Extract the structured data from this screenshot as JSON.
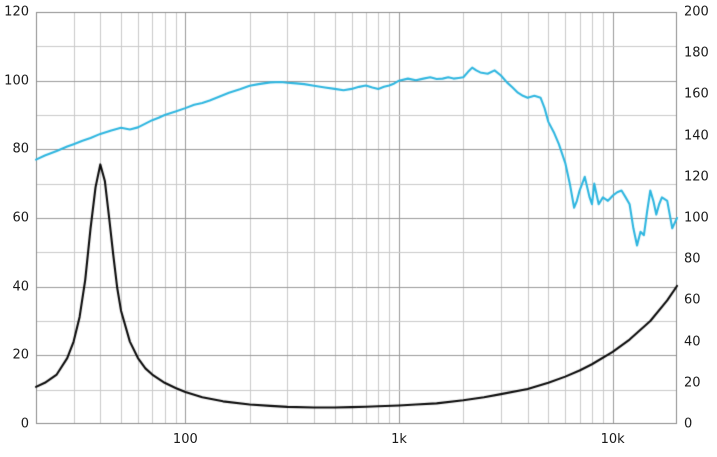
{
  "chart_data": {
    "type": "line",
    "title": "",
    "xlabel": "",
    "ylabel_left": "",
    "ylabel_right": "",
    "x_axis": {
      "scale": "log",
      "min": 20,
      "max": 20000,
      "tick_labels": [
        {
          "value": 100,
          "label": "100"
        },
        {
          "value": 1000,
          "label": "1k"
        },
        {
          "value": 10000,
          "label": "10k"
        }
      ]
    },
    "y_axis_left": {
      "min": 0,
      "max": 120,
      "grid_step": 10,
      "ticks": [
        0,
        20,
        40,
        60,
        80,
        100,
        120
      ]
    },
    "y_axis_right": {
      "min": 0,
      "max": 200,
      "ticks": [
        0,
        20,
        40,
        60,
        80,
        100,
        120,
        140,
        160,
        180,
        200
      ]
    },
    "grid": true,
    "legend": "none",
    "colors": {
      "background": "#ffffff",
      "grid_minor": "#c9c9c9",
      "grid_major": "#999999",
      "border": "#8a8a8a",
      "text": "#1a1a1a",
      "spl_curve": "#2eb6e0",
      "impedance_curve": "#0a0a0a"
    },
    "series": [
      {
        "name": "spl-response",
        "axis": "left",
        "color": "#2eb6e0",
        "points": [
          [
            20,
            77
          ],
          [
            22,
            78.2
          ],
          [
            25,
            79.5
          ],
          [
            28,
            80.8
          ],
          [
            30,
            81.5
          ],
          [
            33,
            82.5
          ],
          [
            36,
            83.3
          ],
          [
            40,
            84.5
          ],
          [
            45,
            85.5
          ],
          [
            50,
            86.3
          ],
          [
            55,
            85.8
          ],
          [
            60,
            86.4
          ],
          [
            65,
            87.5
          ],
          [
            70,
            88.5
          ],
          [
            75,
            89.2
          ],
          [
            80,
            90
          ],
          [
            90,
            91
          ],
          [
            100,
            92
          ],
          [
            110,
            93
          ],
          [
            120,
            93.5
          ],
          [
            130,
            94.2
          ],
          [
            140,
            95
          ],
          [
            160,
            96.5
          ],
          [
            180,
            97.5
          ],
          [
            200,
            98.5
          ],
          [
            220,
            99
          ],
          [
            250,
            99.5
          ],
          [
            280,
            99.6
          ],
          [
            300,
            99.4
          ],
          [
            330,
            99.2
          ],
          [
            360,
            99
          ],
          [
            400,
            98.5
          ],
          [
            450,
            98
          ],
          [
            500,
            97.6
          ],
          [
            550,
            97.2
          ],
          [
            600,
            97.6
          ],
          [
            650,
            98.2
          ],
          [
            700,
            98.6
          ],
          [
            750,
            98
          ],
          [
            800,
            97.6
          ],
          [
            850,
            98.2
          ],
          [
            900,
            98.6
          ],
          [
            950,
            99.2
          ],
          [
            1000,
            100
          ],
          [
            1100,
            100.6
          ],
          [
            1200,
            100.1
          ],
          [
            1300,
            100.6
          ],
          [
            1400,
            101
          ],
          [
            1500,
            100.5
          ],
          [
            1600,
            100.6
          ],
          [
            1700,
            101
          ],
          [
            1800,
            100.6
          ],
          [
            1900,
            100.8
          ],
          [
            2000,
            101
          ],
          [
            2100,
            102.5
          ],
          [
            2200,
            103.8
          ],
          [
            2300,
            103
          ],
          [
            2400,
            102.4
          ],
          [
            2600,
            102
          ],
          [
            2800,
            103
          ],
          [
            3000,
            101.5
          ],
          [
            3200,
            99.5
          ],
          [
            3400,
            98
          ],
          [
            3600,
            96.5
          ],
          [
            3800,
            95.6
          ],
          [
            4000,
            95
          ],
          [
            4300,
            95.6
          ],
          [
            4600,
            95
          ],
          [
            4800,
            92
          ],
          [
            5000,
            88
          ],
          [
            5300,
            85
          ],
          [
            5600,
            81.5
          ],
          [
            6000,
            76
          ],
          [
            6300,
            70
          ],
          [
            6600,
            63
          ],
          [
            6800,
            65
          ],
          [
            7000,
            68
          ],
          [
            7400,
            72
          ],
          [
            7800,
            66
          ],
          [
            8000,
            64
          ],
          [
            8200,
            70
          ],
          [
            8600,
            64
          ],
          [
            9000,
            66
          ],
          [
            9500,
            65
          ],
          [
            10000,
            66.5
          ],
          [
            10500,
            67.5
          ],
          [
            11000,
            68
          ],
          [
            11500,
            66
          ],
          [
            12000,
            64
          ],
          [
            12500,
            57
          ],
          [
            13000,
            52
          ],
          [
            13500,
            56
          ],
          [
            14000,
            55
          ],
          [
            14500,
            62
          ],
          [
            15000,
            68
          ],
          [
            15500,
            65
          ],
          [
            16000,
            61
          ],
          [
            16500,
            64
          ],
          [
            17000,
            66
          ],
          [
            17500,
            65.5
          ],
          [
            18000,
            65
          ],
          [
            18500,
            61
          ],
          [
            19000,
            57
          ],
          [
            19500,
            58.5
          ],
          [
            20000,
            60
          ]
        ]
      },
      {
        "name": "impedance",
        "axis": "right",
        "color": "#0a0a0a",
        "points": [
          [
            20,
            18
          ],
          [
            22,
            20
          ],
          [
            25,
            24
          ],
          [
            28,
            32
          ],
          [
            30,
            40
          ],
          [
            32,
            52
          ],
          [
            34,
            70
          ],
          [
            36,
            95
          ],
          [
            38,
            115
          ],
          [
            40,
            126
          ],
          [
            42,
            118
          ],
          [
            44,
            100
          ],
          [
            46,
            82
          ],
          [
            48,
            66
          ],
          [
            50,
            55
          ],
          [
            55,
            40
          ],
          [
            60,
            32
          ],
          [
            65,
            27
          ],
          [
            70,
            24
          ],
          [
            80,
            20
          ],
          [
            90,
            17.5
          ],
          [
            100,
            15.5
          ],
          [
            120,
            13
          ],
          [
            150,
            11
          ],
          [
            200,
            9.5
          ],
          [
            250,
            8.8
          ],
          [
            300,
            8.3
          ],
          [
            400,
            8
          ],
          [
            500,
            8
          ],
          [
            600,
            8.2
          ],
          [
            700,
            8.4
          ],
          [
            800,
            8.6
          ],
          [
            1000,
            9
          ],
          [
            1200,
            9.5
          ],
          [
            1500,
            10
          ],
          [
            2000,
            11.5
          ],
          [
            2500,
            13
          ],
          [
            3000,
            14.5
          ],
          [
            4000,
            17
          ],
          [
            5000,
            20
          ],
          [
            6000,
            23
          ],
          [
            7000,
            26
          ],
          [
            8000,
            29
          ],
          [
            10000,
            35
          ],
          [
            12000,
            41
          ],
          [
            15000,
            50
          ],
          [
            18000,
            60
          ],
          [
            20000,
            67
          ]
        ]
      }
    ]
  }
}
